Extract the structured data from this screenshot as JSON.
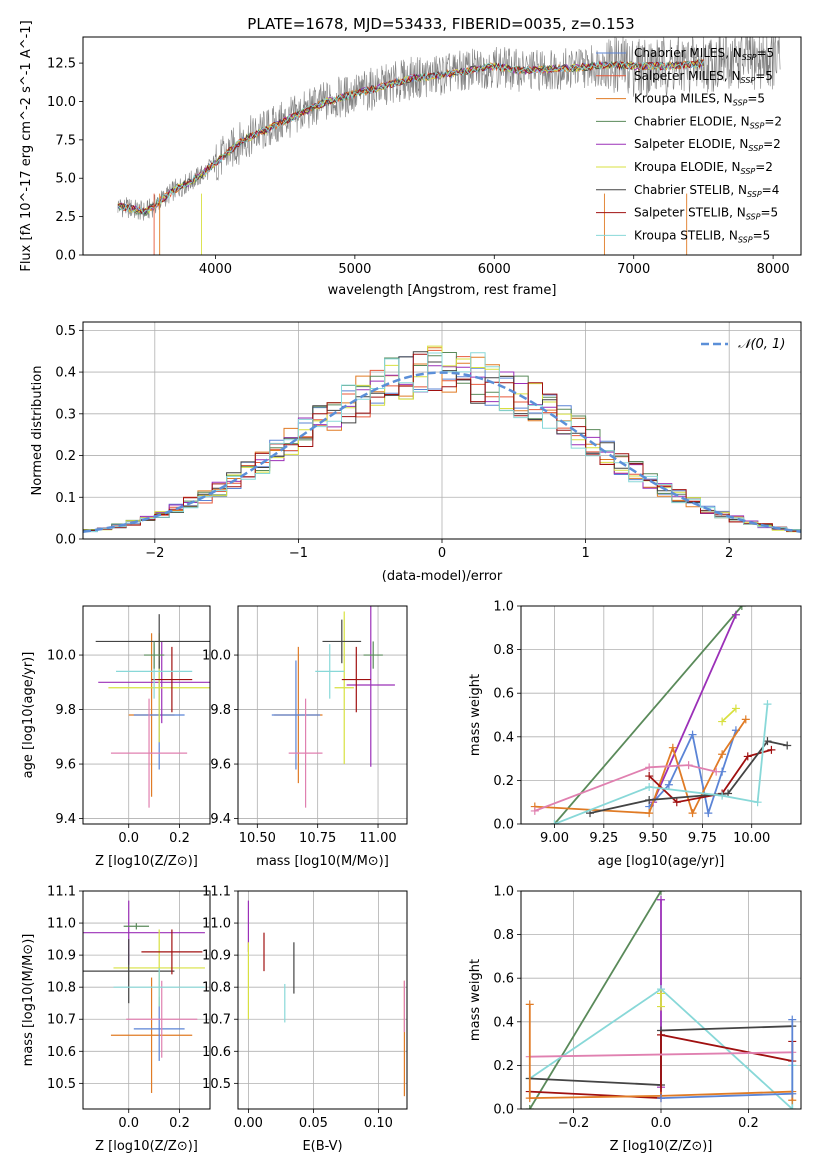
{
  "figure": {
    "title": "PLATE=1678, MJD=53433, FIBERID=0035, z=0.153"
  },
  "colors": {
    "chabrier_miles": "#5b84d6",
    "salpeter_miles": "#e8593a",
    "kroupa_miles": "#e07b25",
    "chabrier_elodie": "#5a8a5a",
    "salpeter_elodie": "#9b30b8",
    "kroupa_elodie": "#d8e040",
    "chabrier_stelib": "#444444",
    "salpeter_stelib": "#a01010",
    "kroupa_stelib": "#88d8d8",
    "pink": "#e080b0",
    "gaussian": "#5b8fd8",
    "obs": "#808080"
  },
  "chart_data": [
    {
      "id": "spectrum",
      "type": "line",
      "title": "PLATE=1678, MJD=53433, FIBERID=0035, z=0.153",
      "xlabel": "wavelength [Angstrom, rest frame]",
      "ylabel": "Flux [f_λ 10^-17 erg cm^-2 s^-1 A^-1]",
      "xlim": [
        3050,
        8200
      ],
      "ylim": [
        0,
        14.2
      ],
      "xticks": [
        4000,
        5000,
        6000,
        7000,
        8000
      ],
      "yticks": [
        0.0,
        2.5,
        5.0,
        7.5,
        10.0,
        12.5
      ],
      "legend_position": "right",
      "legend": [
        {
          "label": "Chabrier MILES, N",
          "sub": "SSP",
          "post": "=5"
        },
        {
          "label": "Salpeter MILES, N",
          "sub": "SSP",
          "post": "=5"
        },
        {
          "label": "Kroupa MILES, N",
          "sub": "SSP",
          "post": "=5"
        },
        {
          "label": "Chabrier ELODIE, N",
          "sub": "SSP",
          "post": "=2"
        },
        {
          "label": "Salpeter ELODIE, N",
          "sub": "SSP",
          "post": "=2"
        },
        {
          "label": "Kroupa ELODIE, N",
          "sub": "SSP",
          "post": "=2"
        },
        {
          "label": "Chabrier STELIB, N",
          "sub": "SSP",
          "post": "=4"
        },
        {
          "label": "Salpeter STELIB, N",
          "sub": "SSP",
          "post": "=5"
        },
        {
          "label": "Kroupa STELIB, N",
          "sub": "SSP",
          "post": "=5"
        }
      ],
      "envelope_x": [
        3300,
        3500,
        3700,
        3900,
        4000,
        4200,
        4400,
        4600,
        4800,
        5000,
        5200,
        5400,
        5600,
        5800,
        6000,
        6200,
        6400,
        6600,
        6800,
        7000,
        7200,
        7400,
        7600,
        7800,
        8050
      ],
      "envelope_y": [
        3.2,
        2.8,
        4.2,
        5.2,
        6.0,
        7.5,
        8.3,
        9.2,
        10.0,
        10.5,
        11.0,
        11.5,
        11.7,
        12.0,
        12.3,
        12.0,
        12.1,
        12.2,
        12.4,
        12.3,
        12.3,
        12.4,
        12.6,
        12.7,
        12.7
      ]
    },
    {
      "id": "residuals",
      "type": "bar",
      "xlabel": "(data-model)/error",
      "ylabel": "Normed distribution",
      "xlim": [
        -2.5,
        2.5
      ],
      "ylim": [
        0,
        0.52
      ],
      "xticks": [
        -2,
        -1,
        0,
        1,
        2
      ],
      "yticks": [
        0.0,
        0.1,
        0.2,
        0.3,
        0.4,
        0.5
      ],
      "legend_position": "upper right",
      "legend": [
        {
          "label": "𝒩(0, 1)"
        }
      ],
      "bins": 50
    },
    {
      "id": "age_vs_Z",
      "type": "scatter",
      "xlabel": "Z [log10(Z/Z⊙)]",
      "ylabel": "age [log10(age/yr)]",
      "xlim": [
        -0.18,
        0.32
      ],
      "ylim": [
        9.38,
        10.18
      ],
      "xticks": [
        0.0,
        0.2
      ],
      "yticks": [
        9.4,
        9.6,
        9.8,
        10.0
      ],
      "points": [
        {
          "x": 0.09,
          "y": 9.78,
          "xe": 0.09,
          "ye": 0.3,
          "c": "kroupa_miles"
        },
        {
          "x": 0.12,
          "y": 9.78,
          "xe": 0.1,
          "ye": 0.2,
          "c": "chabrier_miles"
        },
        {
          "x": 0.08,
          "y": 9.64,
          "xe": 0.15,
          "ye": 0.2,
          "c": "pink"
        },
        {
          "x": 0.13,
          "y": 9.9,
          "xe": 0.25,
          "ye": 0.15,
          "c": "salpeter_elodie"
        },
        {
          "x": 0.12,
          "y": 9.88,
          "xe": 0.2,
          "ye": 0.2,
          "c": "kroupa_elodie"
        },
        {
          "x": 0.12,
          "y": 10.05,
          "xe": 0.25,
          "ye": 0.1,
          "c": "chabrier_stelib"
        },
        {
          "x": 0.17,
          "y": 9.91,
          "xe": 0.08,
          "ye": 0.12,
          "c": "salpeter_stelib"
        },
        {
          "x": 0.1,
          "y": 9.94,
          "xe": 0.15,
          "ye": 0.1,
          "c": "kroupa_stelib"
        },
        {
          "x": 0.1,
          "y": 10.0,
          "xe": 0.04,
          "ye": 0.05,
          "c": "chabrier_elodie"
        }
      ]
    },
    {
      "id": "age_vs_mass",
      "type": "scatter",
      "xlabel": "mass [log10(M/M⊙)]",
      "xlim": [
        10.42,
        11.12
      ],
      "ylim": [
        9.38,
        10.18
      ],
      "xticks": [
        10.5,
        10.75,
        11.0
      ],
      "yticks": [
        9.4,
        9.6,
        9.8,
        10.0
      ],
      "points": [
        {
          "x": 10.67,
          "y": 9.78,
          "xe": 0.1,
          "ye": 0.25,
          "c": "kroupa_miles"
        },
        {
          "x": 10.66,
          "y": 9.78,
          "xe": 0.1,
          "ye": 0.2,
          "c": "chabrier_miles"
        },
        {
          "x": 10.7,
          "y": 9.64,
          "xe": 0.07,
          "ye": 0.2,
          "c": "pink"
        },
        {
          "x": 10.97,
          "y": 9.89,
          "xe": 0.1,
          "ye": 0.3,
          "c": "salpeter_elodie"
        },
        {
          "x": 10.86,
          "y": 9.88,
          "xe": 0.04,
          "ye": 0.28,
          "c": "kroupa_elodie"
        },
        {
          "x": 10.85,
          "y": 10.05,
          "xe": 0.08,
          "ye": 0.08,
          "c": "chabrier_stelib"
        },
        {
          "x": 10.91,
          "y": 9.91,
          "xe": 0.06,
          "ye": 0.12,
          "c": "salpeter_stelib"
        },
        {
          "x": 10.8,
          "y": 9.94,
          "xe": 0.06,
          "ye": 0.1,
          "c": "kroupa_stelib"
        },
        {
          "x": 10.98,
          "y": 10.0,
          "xe": 0.04,
          "ye": 0.05,
          "c": "chabrier_elodie"
        }
      ]
    },
    {
      "id": "massweight_vs_age",
      "type": "line",
      "xlabel": "age [log10(age/yr)]",
      "ylabel": "mass weight",
      "xlim": [
        8.83,
        10.25
      ],
      "ylim": [
        0,
        1.0
      ],
      "xticks": [
        9.0,
        9.25,
        9.5,
        9.75,
        10.0
      ],
      "yticks": [
        0.0,
        0.2,
        0.4,
        0.6,
        0.8,
        1.0
      ],
      "series": [
        {
          "c": "chabrier_elodie",
          "x": [
            9.0,
            9.95
          ],
          "y": [
            0.0,
            1.0
          ]
        },
        {
          "c": "salpeter_elodie",
          "x": [
            9.5,
            9.92
          ],
          "y": [
            0.1,
            0.96
          ]
        },
        {
          "c": "kroupa_elodie",
          "x": [
            9.85,
            9.92
          ],
          "y": [
            0.47,
            0.53
          ]
        },
        {
          "c": "chabrier_miles",
          "x": [
            9.48,
            9.58,
            9.7,
            9.78,
            9.85,
            9.92
          ],
          "y": [
            0.08,
            0.18,
            0.41,
            0.05,
            0.24,
            0.43
          ]
        },
        {
          "c": "kroupa_miles",
          "x": [
            8.9,
            9.48,
            9.6,
            9.7,
            9.85,
            9.97
          ],
          "y": [
            0.08,
            0.05,
            0.35,
            0.05,
            0.32,
            0.48
          ]
        },
        {
          "c": "pink",
          "x": [
            8.9,
            9.48,
            9.68,
            9.82
          ],
          "y": [
            0.06,
            0.26,
            0.27,
            0.24
          ]
        },
        {
          "c": "salpeter_stelib",
          "x": [
            9.48,
            9.62,
            9.85,
            9.98,
            10.1
          ],
          "y": [
            0.22,
            0.1,
            0.14,
            0.31,
            0.34
          ]
        },
        {
          "c": "chabrier_stelib",
          "x": [
            9.18,
            9.48,
            9.88,
            10.08,
            10.18
          ],
          "y": [
            0.05,
            0.11,
            0.14,
            0.38,
            0.36
          ]
        },
        {
          "c": "kroupa_stelib",
          "x": [
            9.0,
            9.48,
            9.85,
            10.03,
            10.08
          ],
          "y": [
            0.0,
            0.17,
            0.13,
            0.1,
            0.55
          ]
        }
      ]
    },
    {
      "id": "mass_vs_Z",
      "type": "scatter",
      "xlabel": "Z [log10(Z/Z⊙)]",
      "ylabel": "mass [log10(M/M⊙)]",
      "xlim": [
        -0.18,
        0.32
      ],
      "ylim": [
        10.42,
        11.1
      ],
      "xticks": [
        0.0,
        0.2
      ],
      "yticks": [
        10.5,
        10.6,
        10.7,
        10.8,
        10.9,
        11.0,
        11.1
      ],
      "points": [
        {
          "x": 0.09,
          "y": 10.65,
          "xe": 0.16,
          "ye": 0.18,
          "c": "kroupa_miles"
        },
        {
          "x": 0.12,
          "y": 10.67,
          "xe": 0.1,
          "ye": 0.1,
          "c": "chabrier_miles"
        },
        {
          "x": 0.13,
          "y": 10.7,
          "xe": 0.14,
          "ye": 0.12,
          "c": "pink"
        },
        {
          "x": 0.0,
          "y": 10.97,
          "xe": 0.3,
          "ye": 0.1,
          "c": "salpeter_elodie"
        },
        {
          "x": 0.12,
          "y": 10.86,
          "xe": 0.18,
          "ye": 0.12,
          "c": "kroupa_elodie"
        },
        {
          "x": 0.0,
          "y": 10.85,
          "xe": 0.18,
          "ye": 0.1,
          "c": "chabrier_stelib"
        },
        {
          "x": 0.17,
          "y": 10.91,
          "xe": 0.12,
          "ye": 0.07,
          "c": "salpeter_stelib"
        },
        {
          "x": 0.12,
          "y": 10.8,
          "xe": 0.18,
          "ye": 0.06,
          "c": "kroupa_stelib"
        },
        {
          "x": 0.03,
          "y": 10.99,
          "xe": 0.05,
          "ye": 0.01,
          "c": "chabrier_elodie"
        }
      ]
    },
    {
      "id": "mass_vs_ebv",
      "type": "scatter",
      "xlabel": "E(B-V)",
      "xlim": [
        -0.008,
        0.122
      ],
      "ylim": [
        10.42,
        11.1
      ],
      "xticks": [
        0.0,
        0.05,
        0.1
      ],
      "xticklabels": [
        "0.00",
        "0.05",
        "0.10"
      ],
      "yticks": [
        10.5,
        10.6,
        10.7,
        10.8,
        10.9,
        11.0,
        11.1
      ],
      "points": [
        {
          "x": 0.0,
          "y": 10.99,
          "xe": 0,
          "ye": 0.08,
          "c": "salpeter_elodie"
        },
        {
          "x": 0.0,
          "y": 10.82,
          "xe": 0,
          "ye": 0.12,
          "c": "kroupa_elodie"
        },
        {
          "x": 0.012,
          "y": 10.91,
          "xe": 0,
          "ye": 0.06,
          "c": "salpeter_stelib"
        },
        {
          "x": 0.028,
          "y": 10.75,
          "xe": 0,
          "ye": 0.06,
          "c": "kroupa_stelib"
        },
        {
          "x": 0.035,
          "y": 10.86,
          "xe": 0,
          "ye": 0.08,
          "c": "chabrier_stelib"
        },
        {
          "x": 0.12,
          "y": 10.64,
          "xe": 0,
          "ye": 0.18,
          "c": "kroupa_miles"
        },
        {
          "x": 0.12,
          "y": 10.74,
          "xe": 0,
          "ye": 0.08,
          "c": "pink"
        }
      ]
    },
    {
      "id": "massweight_vs_Z",
      "type": "line",
      "xlabel": "Z [log10(Z/Z⊙)]",
      "ylabel": "mass weight",
      "xlim": [
        -0.32,
        0.32
      ],
      "ylim": [
        0,
        1.0
      ],
      "xticks": [
        -0.2,
        0.0,
        0.2
      ],
      "xticklabels": [
        "−0.2",
        "0.0",
        "0.2"
      ],
      "yticks": [
        0.0,
        0.2,
        0.4,
        0.6,
        0.8,
        1.0
      ],
      "series": [
        {
          "c": "chabrier_elodie",
          "x": [
            -0.3,
            0.0
          ],
          "y": [
            0.0,
            1.0
          ]
        },
        {
          "c": "salpeter_elodie",
          "x": [
            0.0,
            0.0
          ],
          "y": [
            0.1,
            0.96
          ]
        },
        {
          "c": "kroupa_stelib",
          "x": [
            -0.3,
            0.0,
            0.3,
            0.3
          ],
          "y": [
            0.14,
            0.55,
            0.0,
            0.2
          ]
        },
        {
          "c": "chabrier_stelib",
          "x": [
            -0.3,
            0.0,
            0.0,
            0.3
          ],
          "y": [
            0.14,
            0.11,
            0.36,
            0.38
          ]
        },
        {
          "c": "salpeter_stelib",
          "x": [
            -0.3,
            0.0,
            0.0,
            0.3,
            0.3
          ],
          "y": [
            0.08,
            0.05,
            0.34,
            0.22,
            0.31
          ]
        },
        {
          "c": "pink",
          "x": [
            -0.3,
            0.3
          ],
          "y": [
            0.24,
            0.26
          ]
        },
        {
          "c": "kroupa_miles",
          "x": [
            -0.3,
            -0.3,
            0.0,
            0.3,
            0.3
          ],
          "y": [
            0.48,
            0.05,
            0.06,
            0.08,
            0.04
          ]
        },
        {
          "c": "chabrier_miles",
          "x": [
            0.0,
            0.3,
            0.3
          ],
          "y": [
            0.05,
            0.07,
            0.41
          ]
        },
        {
          "c": "kroupa_elodie",
          "x": [
            0.0,
            0.0
          ],
          "y": [
            0.47,
            0.53
          ]
        }
      ]
    }
  ]
}
